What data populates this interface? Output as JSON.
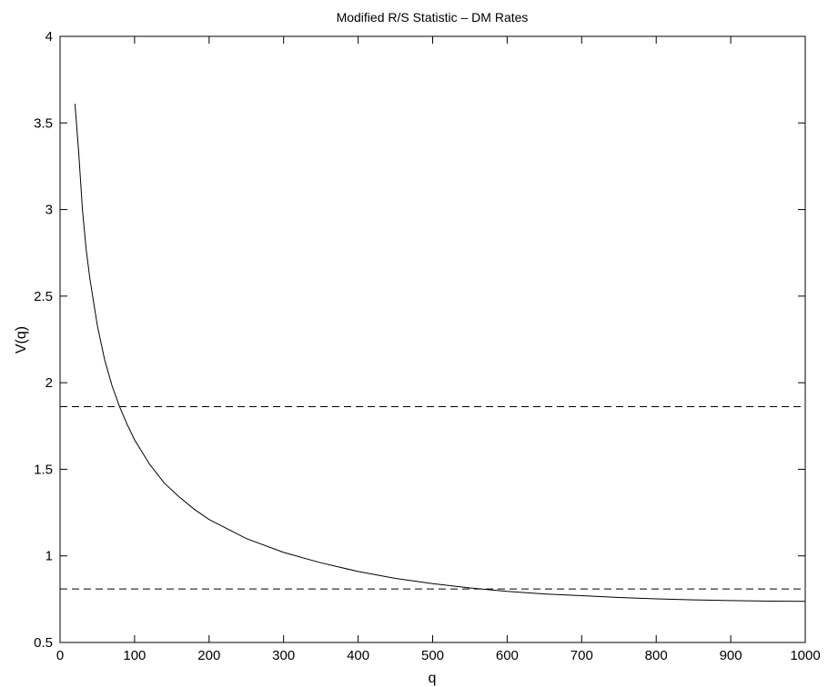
{
  "chart_data": {
    "type": "line",
    "title": "Modified R/S Statistic – DM Rates",
    "xlabel": "q",
    "ylabel": "V(q)",
    "xlim": [
      0,
      1000
    ],
    "ylim": [
      0.5,
      4
    ],
    "x_ticks": [
      0,
      100,
      200,
      300,
      400,
      500,
      600,
      700,
      800,
      900,
      1000
    ],
    "y_ticks": [
      0.5,
      1,
      1.5,
      2,
      2.5,
      3,
      3.5,
      4
    ],
    "x_tick_labels": [
      "0",
      "100",
      "200",
      "300",
      "400",
      "500",
      "600",
      "700",
      "800",
      "900",
      "1000"
    ],
    "y_tick_labels": [
      "0.5",
      "1",
      "1.5",
      "2",
      "2.5",
      "3",
      "3.5",
      "4"
    ],
    "grid": false,
    "series": [
      {
        "style": "solid",
        "x": [
          20,
          25,
          30,
          35,
          40,
          50,
          60,
          70,
          80,
          90,
          100,
          120,
          140,
          160,
          180,
          200,
          250,
          300,
          350,
          400,
          450,
          500,
          550,
          600,
          650,
          700,
          750,
          800,
          850,
          900,
          950,
          1000
        ],
        "y": [
          3.61,
          3.33,
          3.0,
          2.77,
          2.6,
          2.33,
          2.13,
          1.98,
          1.86,
          1.76,
          1.67,
          1.53,
          1.42,
          1.34,
          1.27,
          1.21,
          1.1,
          1.02,
          0.96,
          0.91,
          0.87,
          0.84,
          0.815,
          0.795,
          0.78,
          0.77,
          0.76,
          0.752,
          0.746,
          0.742,
          0.739,
          0.737
        ]
      }
    ],
    "reference_lines": [
      {
        "orientation": "horizontal",
        "style": "dashed",
        "y": 1.862
      },
      {
        "orientation": "horizontal",
        "style": "dashed",
        "y": 0.809
      }
    ]
  }
}
